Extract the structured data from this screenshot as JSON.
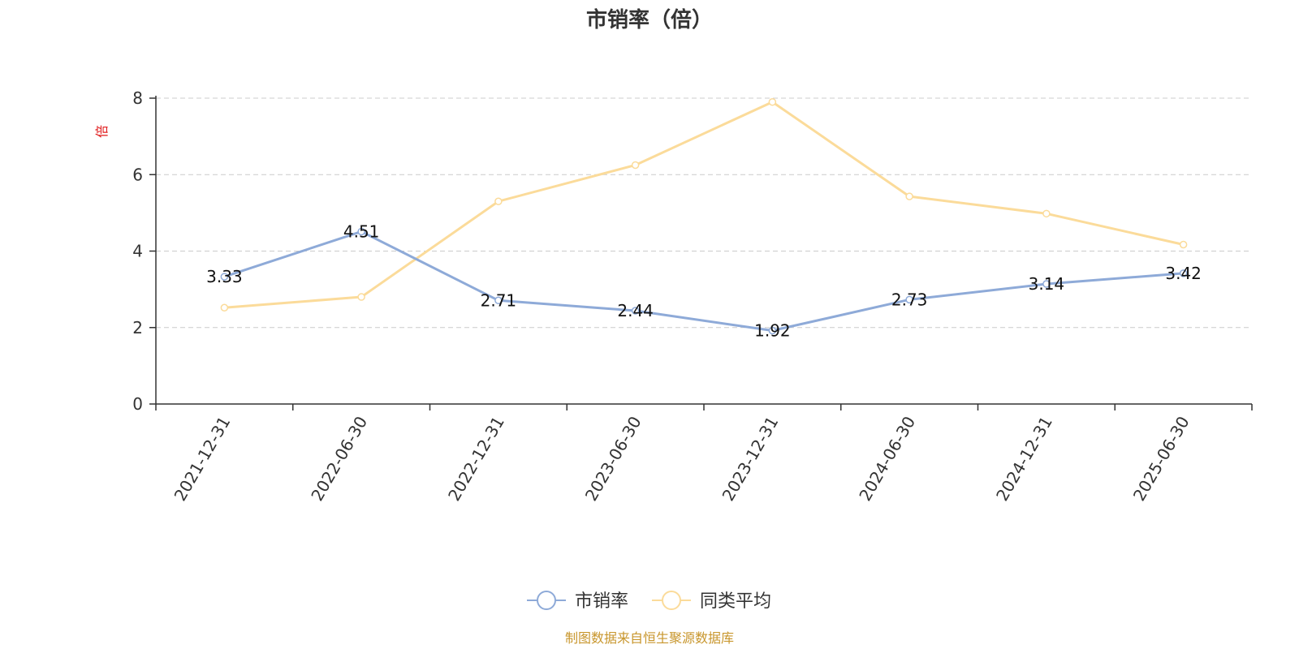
{
  "chart_data": {
    "type": "line",
    "title": "市销率（倍）",
    "ylabel": "倍",
    "xlabel": "",
    "categories": [
      "2021-12-31",
      "2022-06-30",
      "2022-12-31",
      "2023-06-30",
      "2023-12-31",
      "2024-06-30",
      "2024-12-31",
      "2025-06-30"
    ],
    "ylim": [
      0,
      8
    ],
    "yticks": [
      0,
      2,
      4,
      6,
      8
    ],
    "grid": true,
    "legend_position": "bottom-center",
    "series": [
      {
        "name": "市销率",
        "color": "#8eaad8",
        "values": [
          3.33,
          4.51,
          2.71,
          2.44,
          1.92,
          2.73,
          3.14,
          3.42
        ],
        "data_labels": [
          "3.33",
          "4.51",
          "2.71",
          "2.44",
          "1.92",
          "2.73",
          "3.14",
          "3.42"
        ]
      },
      {
        "name": "同类平均",
        "color": "#fbdb9a",
        "values": [
          2.52,
          2.8,
          5.3,
          6.25,
          7.9,
          5.43,
          4.98,
          4.17
        ]
      }
    ],
    "source_note": "制图数据来自恒生聚源数据库"
  }
}
